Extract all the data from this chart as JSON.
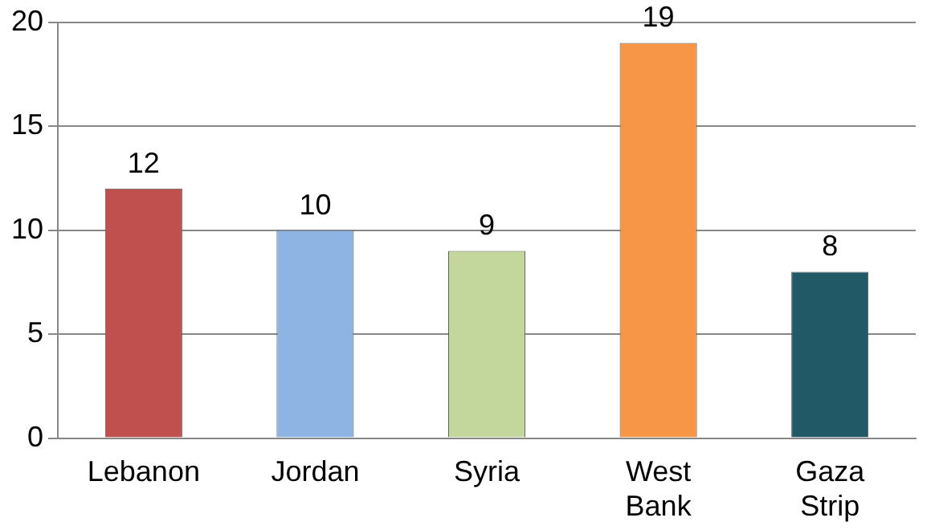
{
  "chart_data": {
    "type": "bar",
    "categories": [
      "Lebanon",
      "Jordan",
      "Syria",
      "West Bank",
      "Gaza Strip"
    ],
    "values": [
      12,
      10,
      9,
      19,
      8
    ],
    "colors": [
      "#c0504d",
      "#8db4e2",
      "#c3d69b",
      "#f79646",
      "#215967"
    ],
    "ylim": [
      0,
      20
    ],
    "yticks": [
      0,
      5,
      10,
      15,
      20
    ],
    "grid": "y",
    "data_labels": true,
    "legend": false
  }
}
